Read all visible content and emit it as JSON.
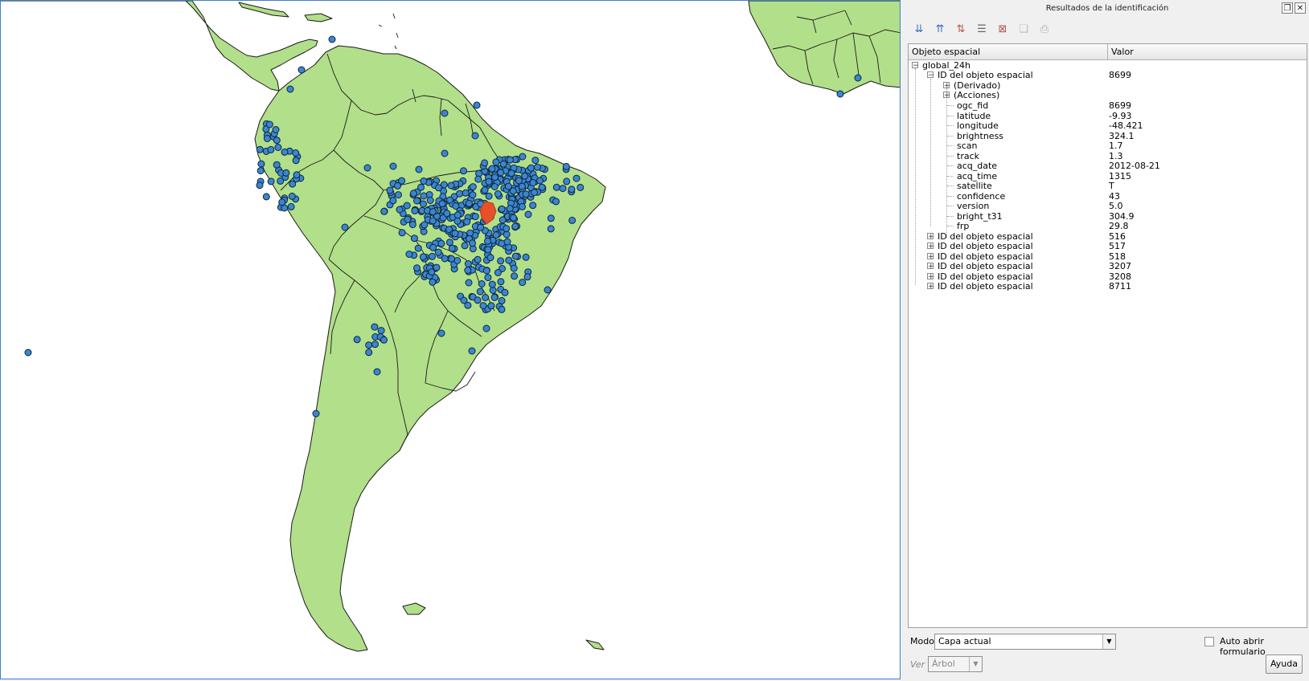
{
  "panel": {
    "title": "Resultados de la identificación",
    "columns": {
      "feature": "Objeto espacial",
      "value": "Valor"
    },
    "layer": "global_24h",
    "selected_feature": {
      "label": "ID del objeto espacial",
      "id": "8699",
      "derived": "(Derivado)",
      "actions": "(Acciones)",
      "attributes": [
        {
          "name": "ogc_fid",
          "value": "8699"
        },
        {
          "name": "latitude",
          "value": "-9.93"
        },
        {
          "name": "longitude",
          "value": "-48.421"
        },
        {
          "name": "brightness",
          "value": "324.1"
        },
        {
          "name": "scan",
          "value": "1.7"
        },
        {
          "name": "track",
          "value": "1.3"
        },
        {
          "name": "acq_date",
          "value": "2012-08-21"
        },
        {
          "name": "acq_time",
          "value": " 1315"
        },
        {
          "name": "satellite",
          "value": "T"
        },
        {
          "name": "confidence",
          "value": "43"
        },
        {
          "name": "version",
          "value": "5.0"
        },
        {
          "name": "bright_t31",
          "value": "304.9"
        },
        {
          "name": "frp",
          "value": "29.8"
        }
      ]
    },
    "other_features": [
      {
        "label": "ID del objeto espacial",
        "id": "516"
      },
      {
        "label": "ID del objeto espacial",
        "id": "517"
      },
      {
        "label": "ID del objeto espacial",
        "id": "518"
      },
      {
        "label": "ID del objeto espacial",
        "id": "3207"
      },
      {
        "label": "ID del objeto espacial",
        "id": "3208"
      },
      {
        "label": "ID del objeto espacial",
        "id": "8711"
      }
    ],
    "mode_label": "Modo",
    "mode_value": "Capa actual",
    "auto_open_label": "Auto abrir formulario",
    "view_label": "Ver",
    "view_value": "Árbol",
    "help_label": "Ayuda"
  },
  "toolbar_icons": [
    "expand-tree-icon",
    "collapse-tree-icon",
    "expand-new-icon",
    "clear-results-icon",
    "clear-highlights-icon",
    "copy-feature-icon",
    "print-icon"
  ],
  "colors": {
    "land": "#b2df8a",
    "fire_point": "#3a87cf",
    "selected_point": "#e8502a",
    "border": "#1a1a1a"
  }
}
